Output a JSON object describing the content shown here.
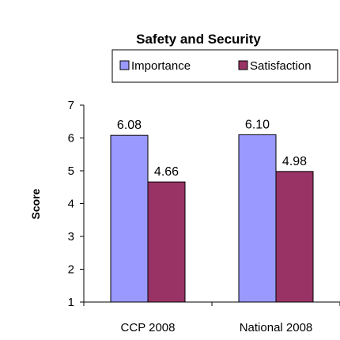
{
  "chart_data": {
    "type": "bar",
    "title": "Safety and Security",
    "xlabel": "",
    "ylabel": "Score",
    "categories": [
      "CCP 2008",
      "National 2008"
    ],
    "series": [
      {
        "name": "Importance",
        "values": [
          6.08,
          6.1
        ],
        "color": "#9999ff"
      },
      {
        "name": "Satisfaction",
        "values": [
          4.66,
          4.98
        ],
        "color": "#993366"
      }
    ],
    "data_labels": [
      [
        "6.08",
        "6.10"
      ],
      [
        "4.66",
        "4.98"
      ]
    ],
    "ylim": [
      1,
      7
    ],
    "yticks": [
      "1",
      "2",
      "3",
      "4",
      "5",
      "6",
      "7"
    ],
    "grid": false,
    "legend_position": "top-right"
  }
}
